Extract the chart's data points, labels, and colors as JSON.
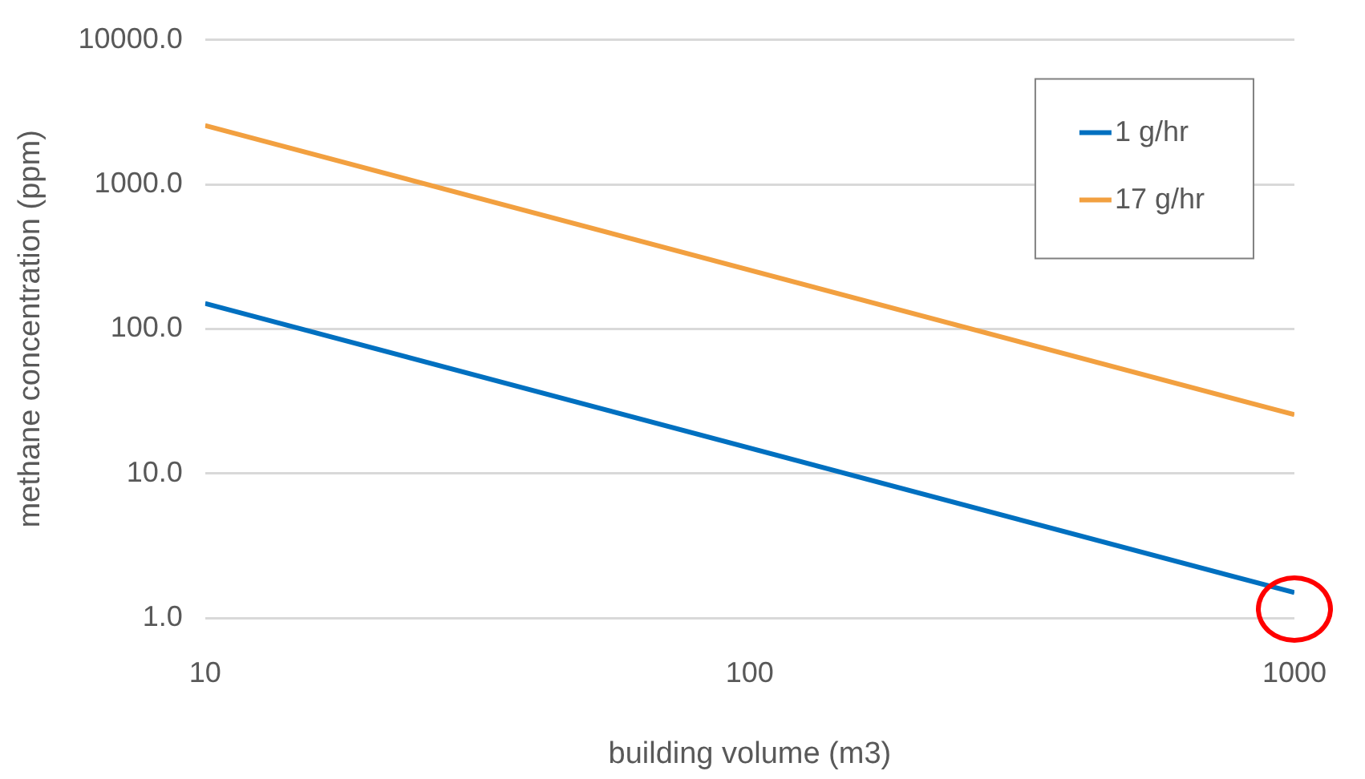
{
  "chart_data": {
    "type": "line",
    "xlabel": "building volume (m3)",
    "ylabel": "methane concentration (ppm)",
    "x": [
      10,
      1000
    ],
    "series": [
      {
        "name": "1 g/hr",
        "color": "#0070c0",
        "values": [
          150,
          1.5
        ]
      },
      {
        "name": "17 g/hr",
        "color": "#f2a040",
        "values": [
          2550,
          25.5
        ]
      }
    ],
    "log": "xy",
    "xlim": [
      10,
      1000
    ],
    "xticks": [
      10,
      100,
      1000
    ],
    "ylim": [
      1,
      10000
    ],
    "yticks": [
      {
        "value": 1,
        "label": "1.0"
      },
      {
        "value": 10,
        "label": "10.0"
      },
      {
        "value": 100,
        "label": "100.0"
      },
      {
        "value": 1000,
        "label": "1000.0"
      },
      {
        "value": 10000,
        "label": "10000.0"
      }
    ],
    "grid": "y",
    "legend": "top right",
    "marker": "none",
    "line_style": "solid"
  }
}
